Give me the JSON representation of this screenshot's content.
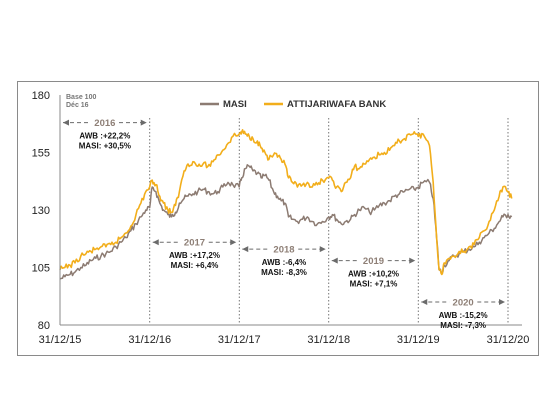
{
  "chart_data": {
    "type": "line",
    "base_note": [
      "Base 100",
      "Déc 16"
    ],
    "ylim": [
      80,
      180
    ],
    "yticks": [
      80,
      105,
      130,
      155,
      180
    ],
    "xlim": [
      "2015-12-31",
      "2020-12-31"
    ],
    "xticks": [
      {
        "label": "31/12/15",
        "date": "2015-12-31"
      },
      {
        "label": "31/12/16",
        "date": "2016-12-31"
      },
      {
        "label": "31/12/17",
        "date": "2017-12-31"
      },
      {
        "label": "31/12/18",
        "date": "2018-12-31"
      },
      {
        "label": "31/12/19",
        "date": "2019-12-31"
      },
      {
        "label": "31/12/20",
        "date": "2020-12-31"
      }
    ],
    "vlines": [
      "2016-12-31",
      "2017-12-31",
      "2018-12-31",
      "2019-12-31",
      "2020-12-31"
    ],
    "legend_position": "top-center",
    "series": [
      {
        "name": "MASI",
        "color": "#8c7b72",
        "points": [
          [
            "2015-12-31",
            100
          ],
          [
            "2016-01-20",
            101
          ],
          [
            "2016-02-10",
            102
          ],
          [
            "2016-03-01",
            103
          ],
          [
            "2016-03-25",
            105
          ],
          [
            "2016-04-15",
            106
          ],
          [
            "2016-05-05",
            108
          ],
          [
            "2016-05-25",
            109
          ],
          [
            "2016-06-15",
            110
          ],
          [
            "2016-07-05",
            111
          ],
          [
            "2016-07-25",
            112
          ],
          [
            "2016-08-15",
            114
          ],
          [
            "2016-09-05",
            116
          ],
          [
            "2016-09-25",
            118
          ],
          [
            "2016-10-15",
            121
          ],
          [
            "2016-11-05",
            124
          ],
          [
            "2016-11-25",
            127
          ],
          [
            "2016-12-15",
            130
          ],
          [
            "2016-12-31",
            131
          ],
          [
            "2017-01-10",
            140
          ],
          [
            "2017-01-25",
            138
          ],
          [
            "2017-02-10",
            133
          ],
          [
            "2017-02-25",
            130
          ],
          [
            "2017-03-15",
            128
          ],
          [
            "2017-03-30",
            127
          ],
          [
            "2017-04-15",
            129
          ],
          [
            "2017-05-01",
            133
          ],
          [
            "2017-05-20",
            135
          ],
          [
            "2017-06-05",
            136
          ],
          [
            "2017-06-25",
            137
          ],
          [
            "2017-07-15",
            138
          ],
          [
            "2017-08-05",
            139
          ],
          [
            "2017-08-25",
            138
          ],
          [
            "2017-09-15",
            137
          ],
          [
            "2017-10-05",
            138
          ],
          [
            "2017-10-25",
            140
          ],
          [
            "2017-11-15",
            142
          ],
          [
            "2017-12-05",
            141
          ],
          [
            "2017-12-31",
            140
          ],
          [
            "2018-01-10",
            144
          ],
          [
            "2018-01-25",
            148
          ],
          [
            "2018-02-10",
            149
          ],
          [
            "2018-02-25",
            147
          ],
          [
            "2018-03-15",
            146
          ],
          [
            "2018-03-30",
            144
          ],
          [
            "2018-04-15",
            145
          ],
          [
            "2018-05-01",
            143
          ],
          [
            "2018-05-20",
            138
          ],
          [
            "2018-06-05",
            136
          ],
          [
            "2018-06-20",
            134
          ],
          [
            "2018-07-05",
            133
          ],
          [
            "2018-07-20",
            127
          ],
          [
            "2018-08-05",
            126
          ],
          [
            "2018-08-25",
            125
          ],
          [
            "2018-09-15",
            126
          ],
          [
            "2018-10-05",
            127
          ],
          [
            "2018-10-25",
            125
          ],
          [
            "2018-11-15",
            124
          ],
          [
            "2018-12-05",
            125
          ],
          [
            "2018-12-31",
            127
          ],
          [
            "2019-01-15",
            128
          ],
          [
            "2019-02-01",
            126
          ],
          [
            "2019-02-20",
            124
          ],
          [
            "2019-03-10",
            125
          ],
          [
            "2019-03-30",
            126
          ],
          [
            "2019-04-15",
            128
          ],
          [
            "2019-05-05",
            130
          ],
          [
            "2019-05-25",
            131
          ],
          [
            "2019-06-15",
            129
          ],
          [
            "2019-07-05",
            130
          ],
          [
            "2019-07-25",
            132
          ],
          [
            "2019-08-15",
            133
          ],
          [
            "2019-09-05",
            134
          ],
          [
            "2019-09-25",
            136
          ],
          [
            "2019-10-15",
            137
          ],
          [
            "2019-11-05",
            138
          ],
          [
            "2019-11-25",
            139
          ],
          [
            "2019-12-15",
            139
          ],
          [
            "2019-12-31",
            140
          ],
          [
            "2020-01-20",
            142
          ],
          [
            "2020-02-15",
            142
          ],
          [
            "2020-03-01",
            135
          ],
          [
            "2020-03-15",
            118
          ],
          [
            "2020-03-25",
            104
          ],
          [
            "2020-04-05",
            103
          ],
          [
            "2020-04-15",
            106
          ],
          [
            "2020-05-05",
            108
          ],
          [
            "2020-05-25",
            110
          ],
          [
            "2020-06-15",
            111
          ],
          [
            "2020-07-05",
            112
          ],
          [
            "2020-07-25",
            113
          ],
          [
            "2020-08-15",
            114
          ],
          [
            "2020-09-05",
            116
          ],
          [
            "2020-09-25",
            118
          ],
          [
            "2020-10-15",
            120
          ],
          [
            "2020-11-05",
            122
          ],
          [
            "2020-11-25",
            125
          ],
          [
            "2020-12-10",
            127
          ],
          [
            "2020-12-31",
            128
          ],
          [
            "2021-01-15",
            127
          ]
        ]
      },
      {
        "name": "ATTIJARIWAFA BANK",
        "color": "#f2ae1b",
        "points": [
          [
            "2015-12-31",
            104
          ],
          [
            "2016-01-20",
            105
          ],
          [
            "2016-02-10",
            106
          ],
          [
            "2016-03-01",
            107
          ],
          [
            "2016-03-25",
            110
          ],
          [
            "2016-04-15",
            111
          ],
          [
            "2016-05-05",
            112
          ],
          [
            "2016-05-25",
            113
          ],
          [
            "2016-06-15",
            114
          ],
          [
            "2016-07-05",
            114
          ],
          [
            "2016-07-25",
            115
          ],
          [
            "2016-08-15",
            116
          ],
          [
            "2016-09-05",
            118
          ],
          [
            "2016-09-25",
            120
          ],
          [
            "2016-10-15",
            123
          ],
          [
            "2016-11-05",
            128
          ],
          [
            "2016-11-25",
            133
          ],
          [
            "2016-12-15",
            138
          ],
          [
            "2016-12-31",
            140
          ],
          [
            "2017-01-10",
            143
          ],
          [
            "2017-01-25",
            141
          ],
          [
            "2017-02-10",
            136
          ],
          [
            "2017-02-25",
            133
          ],
          [
            "2017-03-15",
            130
          ],
          [
            "2017-03-30",
            129
          ],
          [
            "2017-04-15",
            132
          ],
          [
            "2017-05-01",
            138
          ],
          [
            "2017-05-20",
            147
          ],
          [
            "2017-06-05",
            150
          ],
          [
            "2017-06-25",
            151
          ],
          [
            "2017-07-15",
            149
          ],
          [
            "2017-08-05",
            150
          ],
          [
            "2017-08-25",
            149
          ],
          [
            "2017-09-15",
            151
          ],
          [
            "2017-10-05",
            154
          ],
          [
            "2017-10-25",
            156
          ],
          [
            "2017-11-15",
            159
          ],
          [
            "2017-12-05",
            162
          ],
          [
            "2017-12-31",
            163
          ],
          [
            "2018-01-10",
            164
          ],
          [
            "2018-01-25",
            163
          ],
          [
            "2018-02-10",
            162
          ],
          [
            "2018-02-25",
            161
          ],
          [
            "2018-03-15",
            160
          ],
          [
            "2018-03-30",
            157
          ],
          [
            "2018-04-15",
            155
          ],
          [
            "2018-05-01",
            152
          ],
          [
            "2018-05-20",
            154
          ],
          [
            "2018-06-05",
            153
          ],
          [
            "2018-06-20",
            152
          ],
          [
            "2018-07-05",
            150
          ],
          [
            "2018-07-20",
            144
          ],
          [
            "2018-08-05",
            142
          ],
          [
            "2018-08-25",
            140
          ],
          [
            "2018-09-15",
            141
          ],
          [
            "2018-10-05",
            142
          ],
          [
            "2018-10-25",
            140
          ],
          [
            "2018-11-15",
            141
          ],
          [
            "2018-12-05",
            143
          ],
          [
            "2018-12-31",
            144
          ],
          [
            "2019-01-15",
            143
          ],
          [
            "2019-02-01",
            140
          ],
          [
            "2019-02-20",
            138
          ],
          [
            "2019-03-10",
            142
          ],
          [
            "2019-03-30",
            144
          ],
          [
            "2019-04-15",
            149
          ],
          [
            "2019-05-05",
            148
          ],
          [
            "2019-05-25",
            150
          ],
          [
            "2019-06-15",
            152
          ],
          [
            "2019-07-05",
            153
          ],
          [
            "2019-07-25",
            154
          ],
          [
            "2019-08-15",
            155
          ],
          [
            "2019-09-05",
            156
          ],
          [
            "2019-09-25",
            158
          ],
          [
            "2019-10-15",
            160
          ],
          [
            "2019-11-05",
            161
          ],
          [
            "2019-11-25",
            163
          ],
          [
            "2019-12-15",
            164
          ],
          [
            "2019-12-31",
            162
          ],
          [
            "2020-01-20",
            163
          ],
          [
            "2020-02-15",
            158
          ],
          [
            "2020-03-01",
            142
          ],
          [
            "2020-03-15",
            118
          ],
          [
            "2020-03-25",
            104
          ],
          [
            "2020-04-05",
            102
          ],
          [
            "2020-04-15",
            107
          ],
          [
            "2020-05-05",
            109
          ],
          [
            "2020-05-25",
            110
          ],
          [
            "2020-06-15",
            112
          ],
          [
            "2020-07-05",
            112
          ],
          [
            "2020-07-25",
            114
          ],
          [
            "2020-08-15",
            115
          ],
          [
            "2020-09-05",
            118
          ],
          [
            "2020-09-25",
            121
          ],
          [
            "2020-10-15",
            125
          ],
          [
            "2020-11-05",
            130
          ],
          [
            "2020-11-25",
            136
          ],
          [
            "2020-12-10",
            140
          ],
          [
            "2020-12-31",
            138
          ],
          [
            "2021-01-15",
            135
          ]
        ]
      }
    ],
    "annotations": [
      {
        "period": "2016",
        "from": "2015-12-31",
        "to": "2016-12-31",
        "y": 168,
        "lines": [
          "AWB :+22,2%",
          "MASI: +30,5%"
        ]
      },
      {
        "period": "2017",
        "from": "2016-12-31",
        "to": "2017-12-31",
        "y": 116,
        "lines": [
          "AWB :+17,2%",
          "MASI: +6,4%"
        ]
      },
      {
        "period": "2018",
        "from": "2017-12-31",
        "to": "2018-12-31",
        "y": 113,
        "lines": [
          "AWB :-6,4%",
          "MASI: -8,3%"
        ]
      },
      {
        "period": "2019",
        "from": "2018-12-31",
        "to": "2019-12-31",
        "y": 108,
        "lines": [
          "AWB :+10,2%",
          "MASI: +7,1%"
        ]
      },
      {
        "period": "2020",
        "from": "2019-12-31",
        "to": "2020-12-31",
        "y": 90,
        "lines": [
          "AWB :-15,2%",
          "MASI: -7,3%"
        ]
      }
    ]
  }
}
